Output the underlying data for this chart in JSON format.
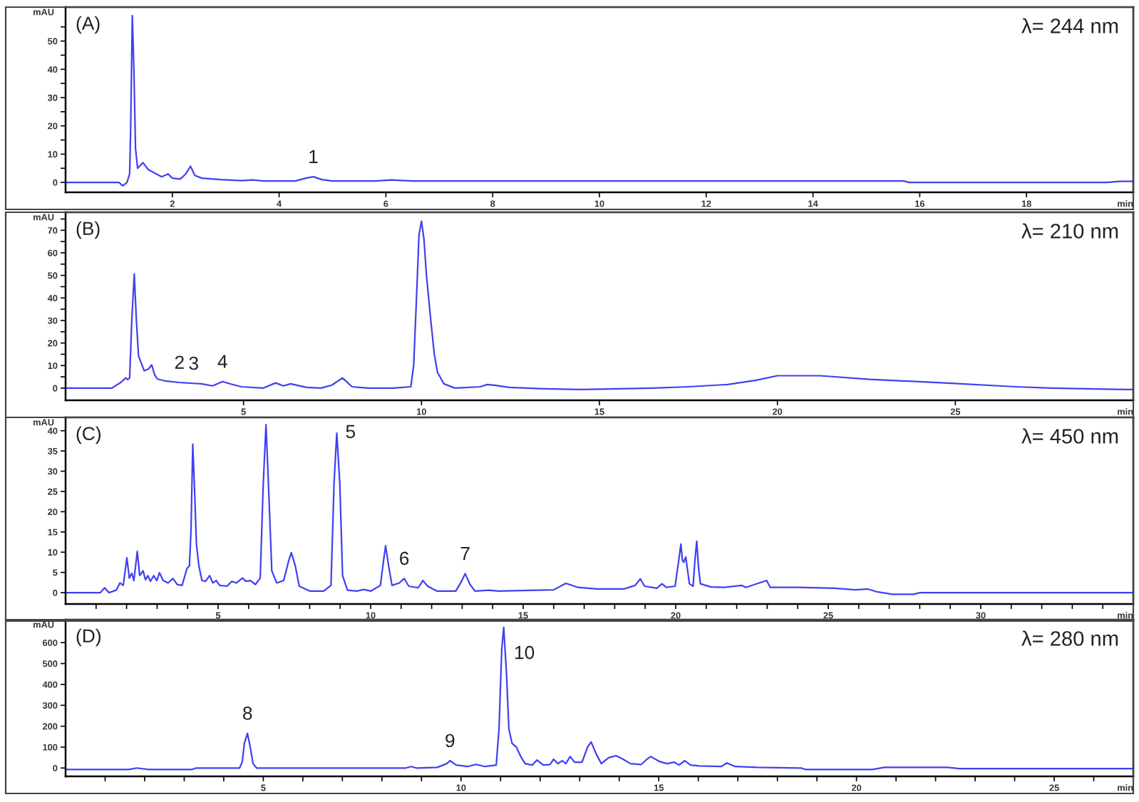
{
  "chart_data": [
    {
      "type": "line",
      "title": "(A)",
      "subtitle": "λ= 244 nm",
      "xlabel": "min",
      "ylabel": "mAU",
      "color": "#4040f0",
      "x": [
        0,
        1.0,
        1.07,
        1.15,
        1.2,
        1.22,
        1.25,
        1.28,
        1.31,
        1.35,
        1.45,
        1.55,
        1.7,
        1.8,
        1.92,
        2.0,
        2.15,
        2.25,
        2.34,
        2.42,
        2.55,
        2.9,
        3.3,
        3.51,
        3.7,
        4.3,
        4.5,
        4.64,
        4.8,
        5.0,
        5.8,
        6.1,
        6.5,
        15.7,
        15.8,
        19.5,
        19.75,
        20
      ],
      "values": [
        0,
        0,
        -1.2,
        0,
        3,
        20,
        59,
        40,
        12,
        5,
        7,
        4.5,
        3,
        2,
        3,
        1.5,
        1.2,
        3,
        5.7,
        2.5,
        1.5,
        1,
        0.6,
        0.9,
        0.5,
        0.5,
        1.5,
        2,
        1,
        0.5,
        0.5,
        0.9,
        0.5,
        0.5,
        0,
        0,
        0.4,
        0.4
      ],
      "xlim": [
        0,
        20
      ],
      "ylim": [
        -3.5,
        62
      ],
      "xticks": [
        2,
        4,
        6,
        8,
        10,
        12,
        14,
        16,
        18
      ],
      "yticks": [
        0,
        {
          "value": 5,
          "label": null
        },
        10,
        {
          "value": 15,
          "label": null
        },
        20,
        {
          "value": 25,
          "label": null
        },
        30,
        {
          "value": 35,
          "label": null
        },
        40,
        {
          "value": 45,
          "label": null
        },
        50,
        {
          "value": 55,
          "label": null
        }
      ],
      "annotations": [
        {
          "text": "1",
          "x": 4.64,
          "y": 2
        }
      ]
    },
    {
      "type": "line",
      "title": "(B)",
      "subtitle": "λ= 210 nm",
      "xlabel": "min",
      "ylabel": "mAU",
      "color": "#4040f0",
      "x": [
        0,
        1.3,
        1.55,
        1.69,
        1.75,
        1.8,
        1.86,
        1.93,
        1.99,
        2.05,
        2.21,
        2.33,
        2.42,
        2.5,
        2.58,
        2.8,
        3.2,
        3.6,
        3.82,
        4.13,
        4.41,
        4.65,
        4.94,
        5.55,
        5.9,
        6.12,
        6.32,
        6.77,
        7.17,
        7.48,
        7.78,
        8.05,
        8.5,
        9.21,
        9.7,
        9.78,
        9.86,
        9.93,
        10.0,
        10.07,
        10.14,
        10.26,
        10.36,
        10.45,
        10.63,
        10.94,
        11.65,
        11.85,
        12.05,
        12.46,
        13.48,
        14.49,
        15.5,
        16.5,
        17.5,
        18.6,
        19.4,
        20.0,
        21.2,
        22.6,
        24.7,
        26.7,
        27.7,
        29.8,
        30
      ],
      "values": [
        0,
        0,
        2.5,
        4.5,
        3.8,
        4.5,
        30,
        50.6,
        30,
        14.2,
        7.7,
        8.5,
        10.3,
        6,
        4,
        3.2,
        2.5,
        2.1,
        1.9,
        1,
        2.9,
        1.8,
        0.6,
        0,
        2.3,
        1,
        1.9,
        0.3,
        0,
        1.3,
        4.5,
        0.6,
        0,
        0,
        0.6,
        10,
        40,
        68,
        74,
        66,
        50,
        30.3,
        15,
        7,
        1.9,
        0,
        0.6,
        1.6,
        1.3,
        0.3,
        -0.3,
        -0.6,
        -0.3,
        0,
        0.6,
        1.6,
        3.5,
        5.5,
        5.5,
        3.9,
        2.3,
        0.6,
        0,
        -0.6,
        -0.6
      ],
      "xlim": [
        0,
        30
      ],
      "ylim": [
        -5.4,
        78
      ],
      "xticks": [
        5,
        10,
        15,
        20,
        25
      ],
      "yticks": [
        0,
        {
          "value": 5,
          "label": null
        },
        10,
        {
          "value": 15,
          "label": null
        },
        20,
        {
          "value": 25,
          "label": null
        },
        30,
        {
          "value": 35,
          "label": null
        },
        40,
        {
          "value": 45,
          "label": null
        },
        50,
        {
          "value": 55,
          "label": null
        },
        60,
        {
          "value": 65,
          "label": null
        },
        70,
        {
          "value": 75,
          "label": null
        }
      ],
      "annotations": [
        {
          "text": "2",
          "x": 3.2,
          "y": 2.5
        },
        {
          "text": "3",
          "x": 3.6,
          "y": 2.1
        },
        {
          "text": "4",
          "x": 4.41,
          "y": 2.9
        }
      ]
    },
    {
      "type": "line",
      "title": "(C)",
      "subtitle": "λ= 450 nm",
      "xlabel": "min",
      "ylabel": "mAU",
      "color": "#4040f0",
      "x": [
        0,
        1.14,
        1.28,
        1.42,
        1.66,
        1.78,
        1.89,
        2.01,
        2.09,
        2.17,
        2.24,
        2.35,
        2.43,
        2.54,
        2.62,
        2.7,
        2.78,
        2.89,
        2.99,
        3.08,
        3.2,
        3.36,
        3.52,
        3.66,
        3.82,
        3.98,
        4.06,
        4.11,
        4.17,
        4.23,
        4.29,
        4.37,
        4.47,
        4.59,
        4.72,
        4.83,
        4.94,
        5.05,
        5.29,
        5.45,
        5.6,
        5.8,
        5.91,
        6.06,
        6.22,
        6.38,
        6.48,
        6.57,
        6.65,
        6.76,
        6.92,
        7.15,
        7.31,
        7.4,
        7.53,
        7.66,
        8.0,
        8.46,
        8.7,
        8.8,
        8.89,
        8.99,
        9.08,
        9.24,
        9.55,
        9.77,
        10.01,
        10.32,
        10.4,
        10.49,
        10.59,
        10.7,
        10.94,
        11.1,
        11.25,
        11.56,
        11.71,
        11.87,
        12.17,
        12.79,
        12.95,
        13.1,
        13.26,
        13.42,
        13.88,
        14.19,
        16.0,
        16.4,
        16.8,
        17.4,
        18.3,
        18.67,
        18.84,
        18.98,
        19.38,
        19.55,
        19.69,
        19.98,
        20.1,
        20.17,
        20.22,
        20.26,
        20.33,
        20.45,
        20.57,
        20.63,
        20.69,
        20.75,
        20.81,
        21.16,
        21.6,
        22.16,
        22.3,
        22.98,
        23.1,
        24.0,
        25.2,
        25.9,
        26.3,
        26.6,
        27.1,
        27.8,
        28.0,
        35
      ],
      "values": [
        0,
        0,
        1.2,
        0,
        0.6,
        2.4,
        1.8,
        8.6,
        3.6,
        4.8,
        3.0,
        10.2,
        4.2,
        5.4,
        3.2,
        4.2,
        2.8,
        4.2,
        3.0,
        4.9,
        3.0,
        2.4,
        3.5,
        2.0,
        1.8,
        6.0,
        6.6,
        15,
        36.7,
        25,
        12,
        6.6,
        3.0,
        2.8,
        4.2,
        2.4,
        3.0,
        1.8,
        1.6,
        2.8,
        2.4,
        3.6,
        2.8,
        3.0,
        2.0,
        3.6,
        26.9,
        41.5,
        26.9,
        5.4,
        2.4,
        3.0,
        7.8,
        9.9,
        6.6,
        1.6,
        0.4,
        0.4,
        1.8,
        26.9,
        39.4,
        26.9,
        4.2,
        0.6,
        0.4,
        0.8,
        0.4,
        1.8,
        6.6,
        11.6,
        6.6,
        1.8,
        2.4,
        3.5,
        1.6,
        1.2,
        3.0,
        1.6,
        0.4,
        0.4,
        2.4,
        4.7,
        2.0,
        0.4,
        0.6,
        0.4,
        0.7,
        2.3,
        1.3,
        0.9,
        0.9,
        1.8,
        3.4,
        1.6,
        1.1,
        2.2,
        1.3,
        1.6,
        8,
        12.0,
        8,
        7.5,
        8.8,
        2.2,
        1.6,
        8,
        12.7,
        6,
        2.2,
        1.4,
        1.3,
        1.8,
        1.3,
        3.0,
        1.3,
        1.3,
        1.1,
        0.7,
        0.9,
        0.2,
        -0.4,
        -0.4,
        0,
        0
      ],
      "xlim": [
        0,
        35
      ],
      "ylim": [
        -2.8,
        43.3
      ],
      "xticks": [
        {
          "value": 1,
          "label": null
        },
        {
          "value": 2,
          "label": null
        },
        {
          "value": 3,
          "label": null
        },
        {
          "value": 4,
          "label": null
        },
        5,
        {
          "value": 6,
          "label": null
        },
        {
          "value": 7,
          "label": null
        },
        {
          "value": 8,
          "label": null
        },
        {
          "value": 9,
          "label": null
        },
        10,
        {
          "value": 11,
          "label": null
        },
        {
          "value": 12,
          "label": null
        },
        {
          "value": 13,
          "label": null
        },
        {
          "value": 14,
          "label": null
        },
        15,
        {
          "value": 16,
          "label": null
        },
        {
          "value": 17,
          "label": null
        },
        {
          "value": 18,
          "label": null
        },
        {
          "value": 19,
          "label": null
        },
        20,
        {
          "value": 21,
          "label": null
        },
        {
          "value": 22,
          "label": null
        },
        {
          "value": 23,
          "label": null
        },
        {
          "value": 24,
          "label": null
        },
        25,
        {
          "value": 26,
          "label": null
        },
        {
          "value": 27,
          "label": null
        },
        {
          "value": 28,
          "label": null
        },
        {
          "value": 29,
          "label": null
        },
        30,
        {
          "value": 31,
          "label": null
        },
        {
          "value": 32,
          "label": null
        },
        {
          "value": 33,
          "label": null
        },
        {
          "value": 34,
          "label": null
        }
      ],
      "yticks": [
        0,
        5,
        10,
        15,
        20,
        25,
        30,
        35,
        40
      ],
      "annotations": [
        {
          "text": "5",
          "x": 8.89,
          "y": 39.4
        },
        {
          "text": "6",
          "x": 11.1,
          "y": 3.5
        },
        {
          "text": "7",
          "x": 13.1,
          "y": 4.7
        }
      ]
    },
    {
      "type": "line",
      "title": "(D)",
      "subtitle": "λ= 280 nm",
      "xlabel": "min",
      "ylabel": "mAU",
      "color": "#4040f0",
      "x": [
        0,
        1.6,
        1.8,
        2.1,
        3.2,
        3.3,
        4.4,
        4.47,
        4.52,
        4.6,
        4.67,
        4.74,
        4.83,
        8.6,
        8.74,
        8.87,
        9.4,
        9.64,
        9.72,
        9.88,
        10.16,
        10.38,
        10.61,
        10.89,
        10.96,
        11.03,
        11.08,
        11.12,
        11.15,
        11.21,
        11.29,
        11.4,
        11.51,
        11.62,
        11.8,
        11.92,
        12.08,
        12.25,
        12.34,
        12.45,
        12.56,
        12.65,
        12.76,
        12.87,
        13.06,
        13.2,
        13.29,
        13.42,
        13.55,
        13.73,
        13.92,
        14.1,
        14.28,
        14.56,
        14.7,
        14.8,
        15.02,
        15.2,
        15.39,
        15.51,
        15.66,
        15.8,
        16.03,
        16.58,
        16.72,
        16.94,
        17.5,
        18.6,
        18.7,
        20.4,
        20.7,
        22.3,
        22.6,
        27
      ],
      "values": [
        -7,
        -7,
        0,
        -7,
        -7,
        0,
        0,
        31,
        118,
        166,
        100,
        21,
        0,
        0,
        7,
        0,
        3,
        21,
        35,
        14,
        7,
        17,
        7,
        14,
        187,
        569,
        673,
        545,
        450,
        187,
        118,
        100,
        55,
        21,
        14,
        38,
        14,
        17,
        42,
        21,
        35,
        21,
        55,
        28,
        28,
        100,
        125,
        66,
        21,
        49,
        59,
        42,
        21,
        17,
        42,
        55,
        31,
        21,
        28,
        14,
        35,
        14,
        10,
        7,
        24,
        7,
        3,
        0,
        -7,
        -7,
        3,
        3,
        -3,
        -3
      ],
      "xlim": [
        0,
        27
      ],
      "ylim": [
        -40,
        710
      ],
      "xticks": [
        {
          "value": 1,
          "label": null
        },
        {
          "value": 2,
          "label": null
        },
        {
          "value": 3,
          "label": null
        },
        {
          "value": 4,
          "label": null
        },
        5,
        {
          "value": 6,
          "label": null
        },
        {
          "value": 7,
          "label": null
        },
        {
          "value": 8,
          "label": null
        },
        {
          "value": 9,
          "label": null
        },
        10,
        {
          "value": 11,
          "label": null
        },
        {
          "value": 12,
          "label": null
        },
        {
          "value": 13,
          "label": null
        },
        {
          "value": 14,
          "label": null
        },
        15,
        {
          "value": 16,
          "label": null
        },
        {
          "value": 17,
          "label": null
        },
        {
          "value": 18,
          "label": null
        },
        {
          "value": 19,
          "label": null
        },
        20,
        {
          "value": 21,
          "label": null
        },
        {
          "value": 22,
          "label": null
        },
        {
          "value": 23,
          "label": null
        },
        {
          "value": 24,
          "label": null
        },
        25,
        {
          "value": 26,
          "label": null
        }
      ],
      "yticks": [
        0,
        100,
        200,
        300,
        400,
        500,
        600
      ],
      "annotations": [
        {
          "text": "8",
          "x": 4.6,
          "y": 166
        },
        {
          "text": "9",
          "x": 9.72,
          "y": 35
        },
        {
          "text": "10",
          "x": 11.12,
          "y": 545
        }
      ]
    }
  ]
}
